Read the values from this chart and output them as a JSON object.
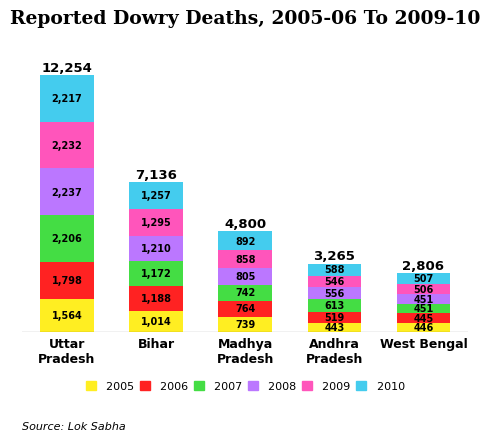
{
  "title": "Reported Dowry Deaths, 2005-06 To 2009-10",
  "source": "Source: Lok Sabha",
  "categories": [
    "Uttar\nPradesh",
    "Bihar",
    "Madhya\nPradesh",
    "Andhra\nPradesh",
    "West Bengal"
  ],
  "totals": [
    "12,254",
    "7,136",
    "4,800",
    "3,265",
    "2,806"
  ],
  "years": [
    "2005",
    "2006",
    "2007",
    "2008",
    "2009",
    "2010"
  ],
  "colors": [
    "#FFEE22",
    "#FF2222",
    "#44DD44",
    "#BB77FF",
    "#FF55BB",
    "#44CCEE"
  ],
  "data": {
    "2005": [
      1564,
      1014,
      739,
      443,
      446
    ],
    "2006": [
      1798,
      1188,
      764,
      519,
      445
    ],
    "2007": [
      2206,
      1172,
      742,
      613,
      451
    ],
    "2008": [
      2237,
      1210,
      805,
      556,
      451
    ],
    "2009": [
      2232,
      1295,
      858,
      546,
      506
    ],
    "2010": [
      2217,
      1257,
      892,
      588,
      507
    ]
  },
  "background_color": "#FFFFFF",
  "title_fontsize": 13.5,
  "label_fontsize": 7,
  "total_fontsize": 9.5,
  "legend_fontsize": 8,
  "source_fontsize": 8,
  "ylim": 14200,
  "bar_width": 0.6
}
